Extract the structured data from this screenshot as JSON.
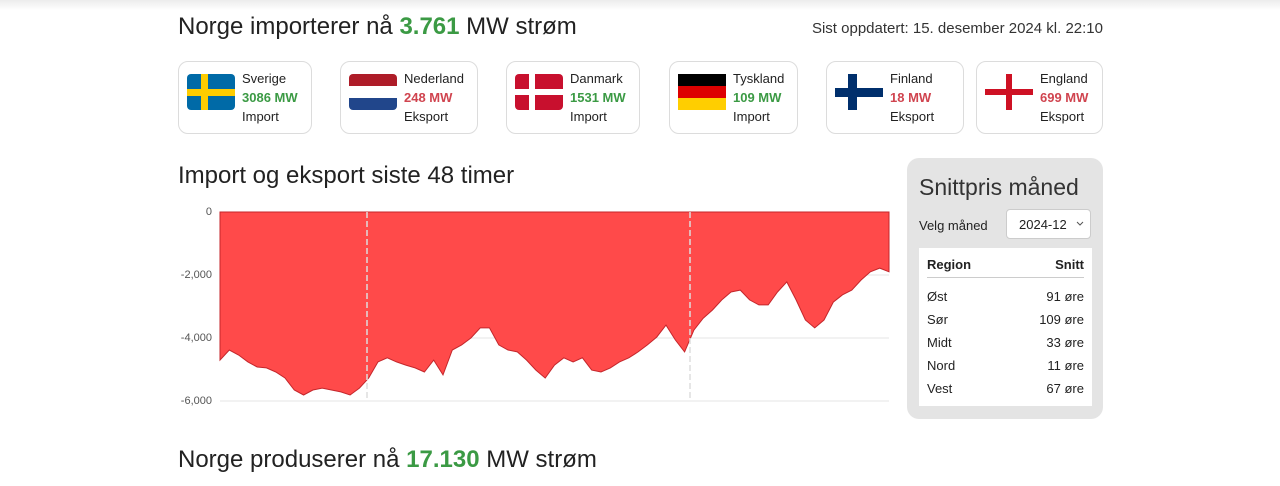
{
  "header": {
    "title_prefix": "Norge importerer nå",
    "title_value": "3.761",
    "title_suffix": "MW strøm",
    "updated": "Sist oppdatert: 15. desember 2024 kl. 22:10"
  },
  "countries": [
    {
      "name": "Sverige",
      "amount": "3086 MW",
      "direction": "Import",
      "color": "#3b9a44"
    },
    {
      "name": "Nederland",
      "amount": "248 MW",
      "direction": "Eksport",
      "color": "#d0444f"
    },
    {
      "name": "Danmark",
      "amount": "1531 MW",
      "direction": "Import",
      "color": "#3b9a44"
    },
    {
      "name": "Tyskland",
      "amount": "109 MW",
      "direction": "Import",
      "color": "#3b9a44"
    },
    {
      "name": "Finland",
      "amount": "18 MW",
      "direction": "Eksport",
      "color": "#d0444f"
    },
    {
      "name": "England",
      "amount": "699 MW",
      "direction": "Eksport",
      "color": "#d0444f"
    }
  ],
  "chart_data": {
    "type": "area",
    "title": "Import og eksport siste 48 timer",
    "color": "#ff4a4a",
    "values": [
      -4700,
      -4380,
      -4540,
      -4760,
      -4920,
      -4950,
      -5080,
      -5270,
      -5650,
      -5810,
      -5650,
      -5590,
      -5650,
      -5710,
      -5810,
      -5590,
      -5270,
      -4760,
      -4630,
      -4760,
      -4860,
      -4950,
      -5080,
      -4700,
      -5170,
      -4380,
      -4220,
      -4000,
      -3680,
      -3680,
      -4220,
      -4380,
      -4440,
      -4700,
      -5020,
      -5270,
      -4860,
      -4630,
      -4760,
      -4630,
      -5020,
      -5080,
      -4950,
      -4760,
      -4630,
      -4440,
      -4220,
      -3970,
      -3590,
      -4060,
      -4440,
      -3750,
      -3370,
      -3110,
      -2790,
      -2540,
      -2480,
      -2790,
      -2950,
      -2950,
      -2540,
      -2220,
      -2790,
      -3430,
      -3680,
      -3430,
      -2860,
      -2630,
      -2480,
      -2160,
      -1900,
      -1780,
      -1900
    ],
    "ylim": [
      -6000,
      0
    ],
    "yticks": [
      0,
      {
        "value": -2000,
        "label": "-2,000"
      },
      {
        "value": -4000,
        "label": "-4,000"
      },
      {
        "value": -6000,
        "label": "-6,000"
      }
    ],
    "grid": true
  },
  "price_panel": {
    "title": "Snittpris måned",
    "select_label": "Velg måned",
    "select_value": "2024-12",
    "table": {
      "headers": [
        "Region",
        "Snitt"
      ],
      "rows": [
        [
          "Øst",
          "91 øre"
        ],
        [
          "Sør",
          "109 øre"
        ],
        [
          "Midt",
          "33 øre"
        ],
        [
          "Nord",
          "11 øre"
        ],
        [
          "Vest",
          "67 øre"
        ]
      ]
    }
  },
  "production": {
    "title_prefix": "Norge produserer nå",
    "title_value": "17.130",
    "title_suffix": "MW strøm"
  }
}
